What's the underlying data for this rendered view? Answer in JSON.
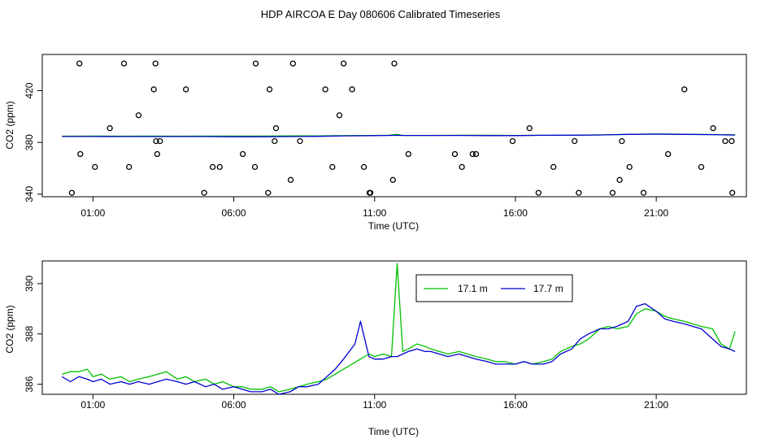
{
  "title": "HDP AIRCOA E  Day 080606  Calibrated Timeseries",
  "colors": {
    "green": "#00c000",
    "blue": "#0000d0"
  },
  "chart_data": [
    {
      "type": "scatter",
      "xlabel": "Time (UTC)",
      "ylabel": "CO2 (ppm)",
      "xlim": [
        -0.8,
        24.2
      ],
      "ylim": [
        338,
        448
      ],
      "x_ticks": [
        1,
        6,
        11,
        16,
        21
      ],
      "x_tick_labels": [
        "01:00",
        "06:00",
        "11:00",
        "16:00",
        "21:00"
      ],
      "y_ticks": [
        340,
        380,
        420
      ],
      "y_tick_labels": [
        "340",
        "380",
        "420"
      ],
      "grid": false,
      "points": [
        [
          0.25,
          341
        ],
        [
          0.52,
          441
        ],
        [
          0.55,
          371
        ],
        [
          1.07,
          361
        ],
        [
          1.6,
          391
        ],
        [
          2.1,
          441
        ],
        [
          2.28,
          361
        ],
        [
          2.62,
          401
        ],
        [
          3.16,
          421
        ],
        [
          3.24,
          381
        ],
        [
          3.22,
          441
        ],
        [
          3.38,
          381
        ],
        [
          3.28,
          371
        ],
        [
          4.3,
          421
        ],
        [
          4.95,
          341
        ],
        [
          5.5,
          361
        ],
        [
          5.25,
          361
        ],
        [
          6.32,
          371
        ],
        [
          6.75,
          361
        ],
        [
          6.78,
          441
        ],
        [
          7.22,
          341
        ],
        [
          7.27,
          421
        ],
        [
          7.45,
          381
        ],
        [
          7.5,
          391
        ],
        [
          8.1,
          441
        ],
        [
          8.02,
          351
        ],
        [
          8.35,
          381
        ],
        [
          9.25,
          421
        ],
        [
          9.5,
          361
        ],
        [
          9.75,
          401
        ],
        [
          9.9,
          441
        ],
        [
          10.2,
          421
        ],
        [
          10.62,
          361
        ],
        [
          10.82,
          341
        ],
        [
          10.85,
          341
        ],
        [
          11.65,
          351
        ],
        [
          11.7,
          441
        ],
        [
          12.2,
          371
        ],
        [
          13.85,
          371
        ],
        [
          14.1,
          361
        ],
        [
          14.48,
          371
        ],
        [
          14.6,
          371
        ],
        [
          15.9,
          381
        ],
        [
          16.5,
          391
        ],
        [
          16.82,
          341
        ],
        [
          17.35,
          361
        ],
        [
          18.1,
          381
        ],
        [
          18.25,
          341
        ],
        [
          19.45,
          341
        ],
        [
          19.7,
          351
        ],
        [
          19.78,
          381
        ],
        [
          20.05,
          361
        ],
        [
          20.55,
          341
        ],
        [
          21.42,
          371
        ],
        [
          22.0,
          421
        ],
        [
          22.6,
          361
        ],
        [
          23.02,
          391
        ],
        [
          23.45,
          381
        ],
        [
          23.68,
          381
        ],
        [
          23.7,
          341
        ]
      ],
      "series": [
        {
          "name": "17.1 m",
          "color": "#00c000",
          "x": [
            -0.1,
            1,
            2,
            3,
            4,
            5,
            6,
            7,
            8,
            9,
            10,
            11,
            11.5,
            11.8,
            12,
            13,
            14,
            15,
            16,
            17,
            18,
            19,
            20,
            21,
            22,
            23,
            23.8
          ],
          "y": [
            384.8,
            384.9,
            384.8,
            384.9,
            384.8,
            384.9,
            384.9,
            384.9,
            385.0,
            385.1,
            385.3,
            385.4,
            385.5,
            386.2,
            385.4,
            385.4,
            385.5,
            385.5,
            385.4,
            385.5,
            385.5,
            385.8,
            386.2,
            386.5,
            386.3,
            386.1,
            385.9
          ]
        },
        {
          "name": "17.7 m",
          "color": "#0000d0",
          "x": [
            -0.1,
            1,
            2,
            3,
            4,
            5,
            6,
            7,
            8,
            9,
            10,
            11,
            11.5,
            11.8,
            12,
            13,
            14,
            15,
            16,
            17,
            18,
            19,
            20,
            21,
            22,
            23,
            23.8
          ],
          "y": [
            384.6,
            384.6,
            384.5,
            384.5,
            384.5,
            384.5,
            384.4,
            384.4,
            384.5,
            384.7,
            385.1,
            385.3,
            385.4,
            385.5,
            385.4,
            385.4,
            385.4,
            385.3,
            385.3,
            385.5,
            385.6,
            385.8,
            386.2,
            386.4,
            386.2,
            386.0,
            385.7
          ]
        }
      ]
    },
    {
      "type": "line",
      "xlabel": "Time (UTC)",
      "ylabel": "CO2 (ppm)",
      "xlim": [
        -0.8,
        24.2
      ],
      "ylim": [
        385.6,
        390.9
      ],
      "x_ticks": [
        1,
        6,
        11,
        16,
        21
      ],
      "x_tick_labels": [
        "01:00",
        "06:00",
        "11:00",
        "16:00",
        "21:00"
      ],
      "y_ticks": [
        386,
        388,
        390
      ],
      "y_tick_labels": [
        "386",
        "388",
        "390"
      ],
      "grid": false,
      "legend": "top-center",
      "series": [
        {
          "name": "17.1 m",
          "color": "#00c000",
          "x": [
            -0.1,
            0.2,
            0.5,
            0.8,
            1.0,
            1.3,
            1.6,
            2.0,
            2.3,
            2.6,
            3.0,
            3.3,
            3.6,
            4.0,
            4.3,
            4.6,
            5.0,
            5.3,
            5.6,
            6.0,
            6.3,
            6.6,
            7.0,
            7.3,
            7.6,
            8.0,
            8.3,
            8.6,
            9.0,
            9.3,
            9.6,
            9.9,
            10.2,
            10.5,
            10.8,
            11.0,
            11.3,
            11.6,
            11.8,
            12.0,
            12.2,
            12.5,
            12.8,
            13.0,
            13.3,
            13.6,
            14.0,
            14.3,
            14.6,
            15.0,
            15.3,
            15.6,
            16.0,
            16.3,
            16.6,
            17.0,
            17.3,
            17.6,
            18.0,
            18.3,
            18.6,
            19.0,
            19.3,
            19.6,
            20.0,
            20.3,
            20.6,
            21.0,
            21.3,
            21.6,
            22.0,
            22.3,
            22.6,
            23.0,
            23.3,
            23.6,
            23.8
          ],
          "y": [
            386.4,
            386.5,
            386.5,
            386.6,
            386.3,
            386.4,
            386.2,
            386.3,
            386.1,
            386.2,
            386.3,
            386.4,
            386.5,
            386.2,
            386.3,
            386.1,
            386.2,
            386.0,
            386.1,
            385.9,
            385.9,
            385.8,
            385.8,
            385.9,
            385.7,
            385.8,
            385.9,
            386.0,
            386.1,
            386.2,
            386.4,
            386.6,
            386.8,
            387.0,
            387.2,
            387.1,
            387.2,
            387.1,
            390.8,
            387.3,
            387.4,
            387.6,
            387.5,
            387.4,
            387.3,
            387.2,
            387.3,
            387.2,
            387.1,
            387.0,
            386.9,
            386.9,
            386.8,
            386.9,
            386.8,
            386.9,
            387.0,
            387.3,
            387.5,
            387.6,
            387.8,
            388.2,
            388.3,
            388.2,
            388.3,
            388.8,
            389.0,
            388.9,
            388.7,
            388.6,
            388.5,
            388.4,
            388.3,
            388.2,
            387.6,
            387.4,
            388.1
          ]
        },
        {
          "name": "17.7 m",
          "color": "#0000d0",
          "x": [
            -0.1,
            0.2,
            0.5,
            0.8,
            1.0,
            1.3,
            1.6,
            2.0,
            2.3,
            2.6,
            3.0,
            3.3,
            3.6,
            4.0,
            4.3,
            4.6,
            5.0,
            5.3,
            5.6,
            6.0,
            6.3,
            6.6,
            7.0,
            7.3,
            7.6,
            8.0,
            8.3,
            8.6,
            9.0,
            9.3,
            9.6,
            9.9,
            10.1,
            10.3,
            10.5,
            10.8,
            11.0,
            11.3,
            11.6,
            11.8,
            12.0,
            12.2,
            12.5,
            12.8,
            13.0,
            13.3,
            13.6,
            14.0,
            14.3,
            14.6,
            15.0,
            15.3,
            15.6,
            16.0,
            16.3,
            16.6,
            17.0,
            17.3,
            17.6,
            18.0,
            18.3,
            18.6,
            19.0,
            19.3,
            19.6,
            20.0,
            20.3,
            20.6,
            21.0,
            21.3,
            21.6,
            22.0,
            22.3,
            22.6,
            23.0,
            23.3,
            23.6,
            23.8
          ],
          "y": [
            386.3,
            386.1,
            386.3,
            386.2,
            386.1,
            386.2,
            386.0,
            386.1,
            386.0,
            386.1,
            386.0,
            386.1,
            386.2,
            386.1,
            386.0,
            386.1,
            385.9,
            386.0,
            385.8,
            385.9,
            385.8,
            385.7,
            385.7,
            385.8,
            385.6,
            385.7,
            385.9,
            385.9,
            386.0,
            386.3,
            386.6,
            387.0,
            387.3,
            387.6,
            388.5,
            387.1,
            387.0,
            387.0,
            387.1,
            387.1,
            387.2,
            387.3,
            387.4,
            387.3,
            387.3,
            387.2,
            387.1,
            387.2,
            387.1,
            387.0,
            386.9,
            386.8,
            386.8,
            386.8,
            386.9,
            386.8,
            386.8,
            386.9,
            387.2,
            387.4,
            387.8,
            388.0,
            388.2,
            388.2,
            388.3,
            388.5,
            389.1,
            389.2,
            388.9,
            388.6,
            388.5,
            388.4,
            388.3,
            388.2,
            387.8,
            387.5,
            387.4,
            387.3
          ]
        }
      ]
    }
  ]
}
